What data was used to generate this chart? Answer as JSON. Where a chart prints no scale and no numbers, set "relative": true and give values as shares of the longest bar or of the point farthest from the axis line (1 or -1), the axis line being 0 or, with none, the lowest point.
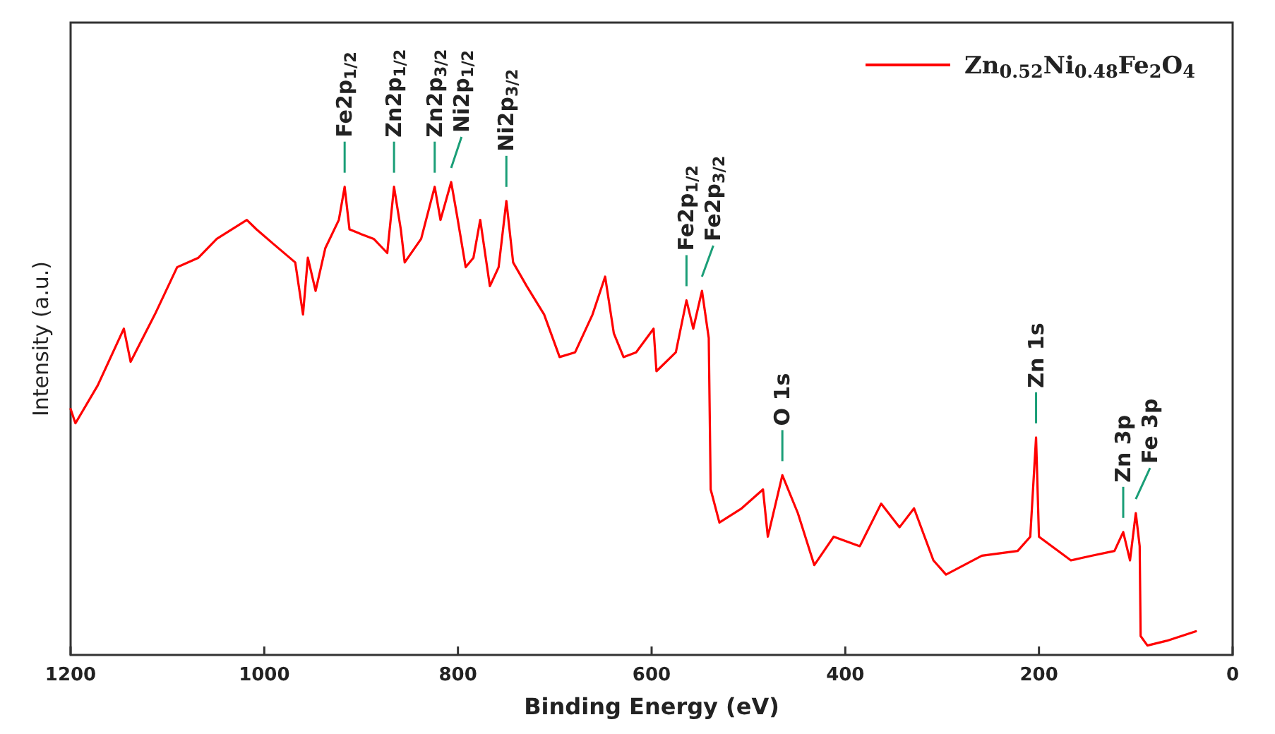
{
  "chart_data": {
    "type": "line",
    "relative": true,
    "xlabel": "Binding Energy (eV)",
    "ylabel": "Intensity  (a.u.)",
    "xlim": [
      1200,
      0
    ],
    "xticks": [
      1200,
      1000,
      800,
      600,
      400,
      200,
      0
    ],
    "legend": "top right",
    "grid": false,
    "marker": "none",
    "line_style": "solid",
    "series": [
      {
        "name": "Zn$_{0.52}$Ni$_{0.48}$Fe$_{2}$O$_{4}$",
        "color": "#ff0000",
        "x": [
          1200,
          1195,
          1172,
          1145,
          1138,
          1113,
          1090,
          1068,
          1049,
          1018,
          1008,
          991,
          968,
          960,
          955,
          947,
          937,
          923,
          917,
          912,
          900,
          887,
          873,
          866,
          859,
          855,
          838,
          824,
          818,
          807,
          801,
          792,
          784,
          777,
          767,
          758,
          750,
          743,
          729,
          711,
          695,
          679,
          661,
          648,
          639,
          629,
          616,
          598,
          595,
          575,
          564,
          557,
          548,
          541,
          539,
          530,
          507,
          485,
          480,
          465,
          449,
          432,
          412,
          385,
          363,
          344,
          329,
          309,
          296,
          259,
          222,
          209,
          203,
          200,
          167,
          145,
          122,
          113,
          106,
          100,
          96,
          95,
          88,
          68,
          38
        ],
        "values": [
          0.52,
          0.49,
          0.57,
          0.69,
          0.62,
          0.72,
          0.82,
          0.84,
          0.88,
          0.92,
          0.9,
          0.87,
          0.83,
          0.72,
          0.84,
          0.77,
          0.86,
          0.92,
          0.99,
          0.9,
          0.89,
          0.88,
          0.85,
          0.99,
          0.9,
          0.83,
          0.88,
          0.99,
          0.92,
          1.0,
          0.93,
          0.82,
          0.84,
          0.92,
          0.78,
          0.82,
          0.96,
          0.83,
          0.78,
          0.72,
          0.63,
          0.64,
          0.72,
          0.8,
          0.68,
          0.63,
          0.64,
          0.69,
          0.6,
          0.64,
          0.75,
          0.69,
          0.77,
          0.67,
          0.35,
          0.28,
          0.31,
          0.35,
          0.25,
          0.38,
          0.3,
          0.19,
          0.25,
          0.23,
          0.32,
          0.27,
          0.31,
          0.2,
          0.17,
          0.21,
          0.22,
          0.25,
          0.46,
          0.25,
          0.2,
          0.21,
          0.22,
          0.26,
          0.2,
          0.3,
          0.23,
          0.04,
          0.02,
          0.03,
          0.05
        ]
      }
    ],
    "annotations": [
      {
        "text": "Fe2p$_{1/2}$",
        "x": 917,
        "y": 0.99
      },
      {
        "text": "Zn2p$_{1/2}$",
        "x": 866,
        "y": 0.99
      },
      {
        "text": "Zn2p$_{3/2}$",
        "x": 824,
        "y": 0.99
      },
      {
        "text": "Ni2p$_{1/2}$",
        "x": 807,
        "y": 1.0
      },
      {
        "text": "Ni2p$_{3/2}$",
        "x": 750,
        "y": 0.96
      },
      {
        "text": "Fe2p$_{1/2}$",
        "x": 564,
        "y": 0.75
      },
      {
        "text": "Fe2p$_{3/2}$",
        "x": 548,
        "y": 0.77
      },
      {
        "text": "O 1s",
        "x": 465,
        "y": 0.38
      },
      {
        "text": "Zn 1s",
        "x": 203,
        "y": 0.46
      },
      {
        "text": "Zn 3p",
        "x": 113,
        "y": 0.26
      },
      {
        "text": "Fe 3p",
        "x": 100,
        "y": 0.3
      }
    ]
  }
}
